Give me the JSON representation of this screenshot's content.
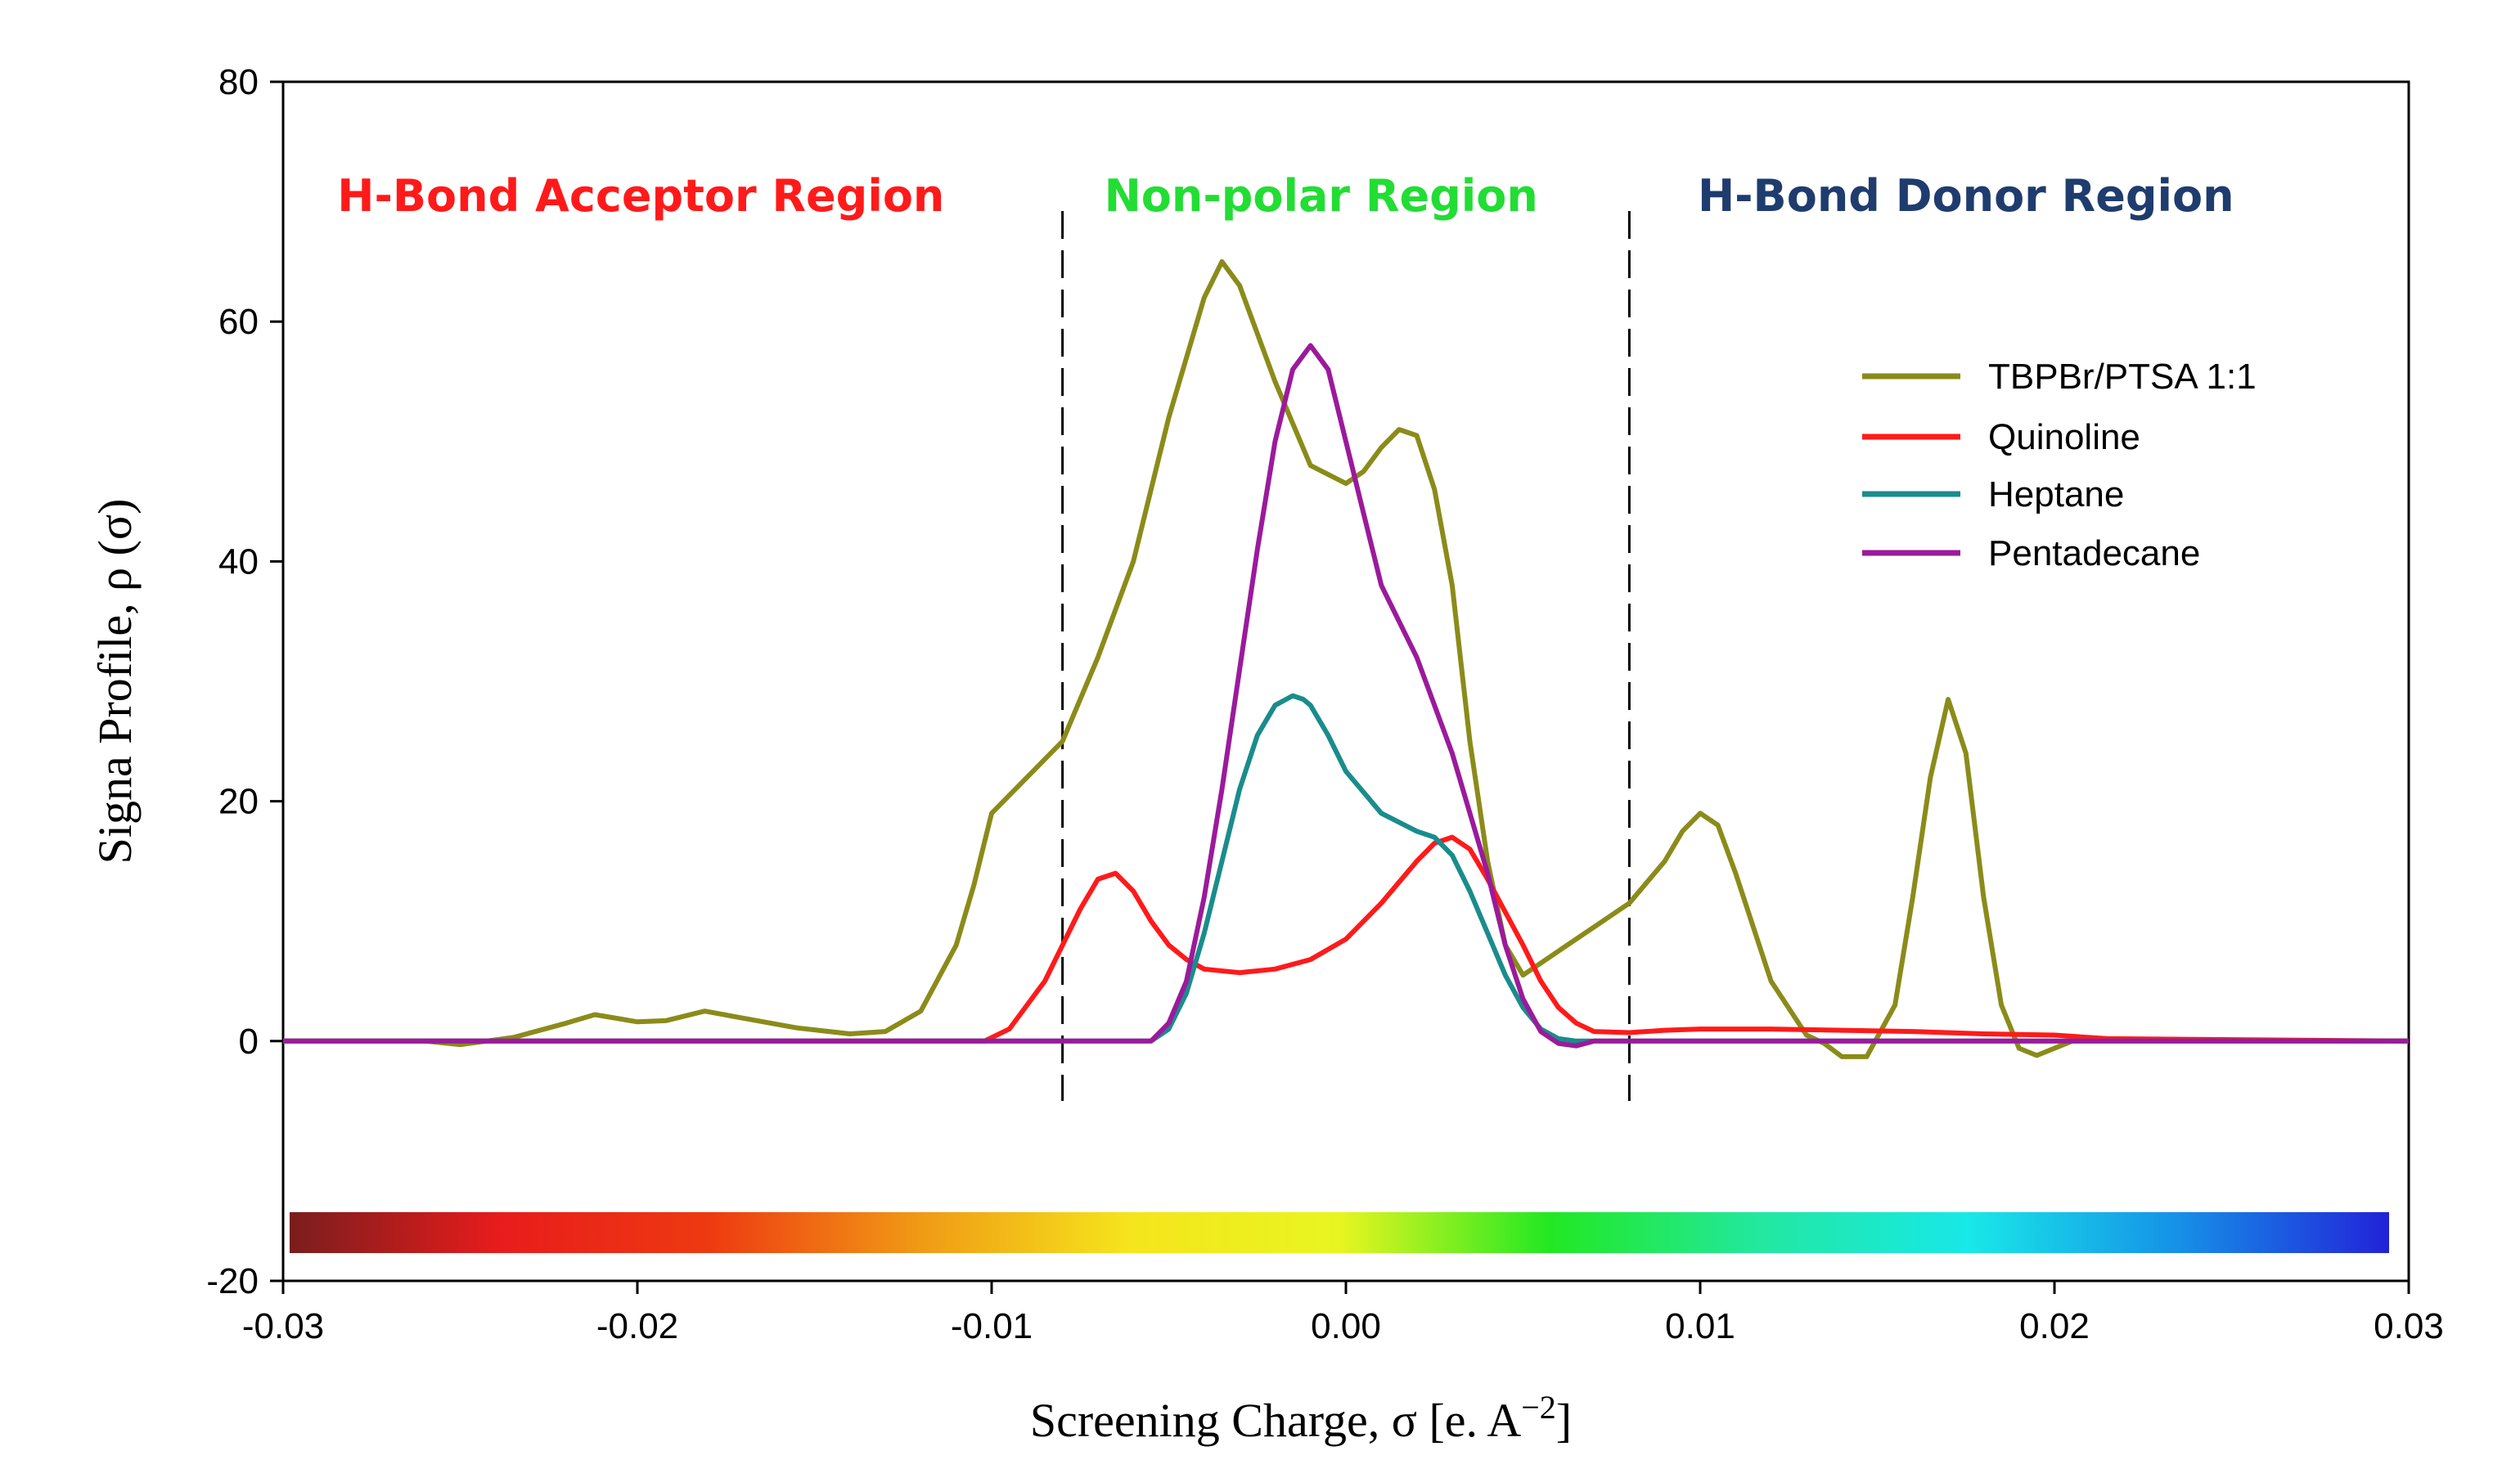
{
  "chart_data": {
    "type": "line",
    "title": "",
    "xlabel": "Screening Charge, σ [e. A",
    "xlabel_sup": "−2",
    "xlabel_close": "]",
    "ylabel": "Signa  Profile,  ρ (σ)",
    "xlim": [
      -0.03,
      0.03
    ],
    "ylim": [
      -20,
      80
    ],
    "x_ticks": [
      -0.03,
      -0.02,
      -0.01,
      0.0,
      0.01,
      0.02,
      0.03
    ],
    "x_tick_labels": [
      "-0.03",
      "-0.02",
      "-0.01",
      "0.00",
      "0.01",
      "0.02",
      "0.03"
    ],
    "y_ticks": [
      -20,
      0,
      20,
      40,
      60,
      80
    ],
    "y_tick_labels": [
      "-20",
      "0",
      "20",
      "40",
      "60",
      "80"
    ],
    "grid": false,
    "legend_position": "top-right",
    "regions": [
      {
        "label": "H-Bond Acceptor Region",
        "color": "#ff1a1a",
        "x_center": -0.0199
      },
      {
        "label": "Non-polar Region",
        "color": "#22dd33",
        "x_center": -0.0007
      },
      {
        "label": "H-Bond Donor Region",
        "color": "#1f3c6e",
        "x_center": 0.0175
      }
    ],
    "region_boundaries": [
      -0.008,
      0.008
    ],
    "colorbar": {
      "x_range": [
        -0.03,
        0.03
      ],
      "colors": [
        "#7a1d1d",
        "#e81c1c",
        "#ee3a10",
        "#f09a15",
        "#f5e51c",
        "#e8f520",
        "#22e822",
        "#22e8a0",
        "#18e8e8",
        "#1690e8",
        "#2222d8"
      ]
    },
    "series": [
      {
        "name": "TBPBr/PTSA 1:1",
        "color": "#8b8b1a",
        "x": [
          -0.03,
          -0.026,
          -0.025,
          -0.0235,
          -0.022,
          -0.0212,
          -0.02,
          -0.0192,
          -0.0181,
          -0.017,
          -0.0155,
          -0.014,
          -0.013,
          -0.012,
          -0.011,
          -0.0105,
          -0.01,
          -0.009,
          -0.008,
          -0.007,
          -0.006,
          -0.005,
          -0.004,
          -0.0035,
          -0.003,
          -0.002,
          -0.001,
          0.0,
          0.0005,
          0.001,
          0.0015,
          0.002,
          0.0025,
          0.003,
          0.0035,
          0.004,
          0.0045,
          0.005,
          0.006,
          0.007,
          0.008,
          0.009,
          0.0095,
          0.01,
          0.0105,
          0.011,
          0.012,
          0.013,
          0.0135,
          0.014,
          0.0147,
          0.0155,
          0.016,
          0.0165,
          0.017,
          0.0175,
          0.018,
          0.0185,
          0.019,
          0.0195,
          0.0205,
          0.022,
          0.03
        ],
        "values": [
          0,
          0,
          -0.3,
          0.3,
          1.5,
          2.2,
          1.6,
          1.7,
          2.5,
          1.9,
          1.1,
          0.6,
          0.8,
          2.5,
          8,
          13,
          19,
          22,
          25,
          32,
          40,
          52,
          62,
          65,
          63,
          55,
          48,
          46.5,
          47.5,
          49.5,
          51,
          50.5,
          46,
          38,
          25,
          15,
          8,
          5.5,
          7.5,
          9.5,
          11.5,
          15,
          17.5,
          19,
          18,
          14,
          5,
          0.5,
          -0.2,
          -1.3,
          -1.3,
          3,
          12,
          22,
          28.5,
          24,
          12,
          3,
          -0.6,
          -1.2,
          0,
          0,
          0
        ]
      },
      {
        "name": "Quinoline",
        "color": "#ff1a1a",
        "x": [
          -0.03,
          -0.0102,
          -0.0095,
          -0.0085,
          -0.0075,
          -0.007,
          -0.0065,
          -0.006,
          -0.0055,
          -0.005,
          -0.0045,
          -0.004,
          -0.003,
          -0.002,
          -0.001,
          0.0,
          0.001,
          0.002,
          0.0025,
          0.003,
          0.0035,
          0.004,
          0.005,
          0.0055,
          0.006,
          0.0065,
          0.007,
          0.008,
          0.009,
          0.01,
          0.012,
          0.014,
          0.016,
          0.018,
          0.02,
          0.0215,
          0.03
        ],
        "values": [
          0,
          0,
          1,
          5,
          11,
          13.5,
          14,
          12.5,
          10,
          8,
          6.8,
          6,
          5.7,
          6,
          6.8,
          8.5,
          11.5,
          15,
          16.5,
          17,
          16,
          13.5,
          8,
          5,
          2.8,
          1.5,
          0.8,
          0.7,
          0.9,
          1,
          1,
          0.9,
          0.8,
          0.6,
          0.5,
          0.2,
          0
        ]
      },
      {
        "name": "Heptane",
        "color": "#1a8c8c",
        "x": [
          -0.03,
          -0.0055,
          -0.005,
          -0.0045,
          -0.004,
          -0.0035,
          -0.003,
          -0.0025,
          -0.002,
          -0.0015,
          -0.0012,
          -0.001,
          -0.0005,
          0.0,
          0.001,
          0.002,
          0.0025,
          0.003,
          0.0035,
          0.004,
          0.0045,
          0.005,
          0.0055,
          0.006,
          0.0065,
          0.007,
          0.03
        ],
        "values": [
          0,
          0,
          1,
          4,
          9,
          15,
          21,
          25.5,
          28,
          28.8,
          28.5,
          28,
          25.5,
          22.5,
          19,
          17.5,
          17,
          15.5,
          12.5,
          9,
          5.5,
          2.8,
          1,
          0.2,
          0,
          0,
          0
        ]
      },
      {
        "name": "Pentadecane",
        "color": "#9b1a9b",
        "x": [
          -0.03,
          -0.0055,
          -0.005,
          -0.0045,
          -0.004,
          -0.0035,
          -0.003,
          -0.0025,
          -0.002,
          -0.0015,
          -0.001,
          -0.0005,
          0.0,
          0.0005,
          0.001,
          0.002,
          0.003,
          0.004,
          0.0045,
          0.005,
          0.0055,
          0.006,
          0.0065,
          0.007,
          0.0075,
          0.008,
          0.03
        ],
        "values": [
          0,
          0,
          1.5,
          5,
          12,
          21,
          31,
          41,
          50,
          56,
          58,
          56,
          50,
          44,
          38,
          32,
          24,
          14,
          8,
          3.5,
          0.8,
          -0.2,
          -0.4,
          0,
          0,
          0,
          0
        ]
      }
    ]
  }
}
